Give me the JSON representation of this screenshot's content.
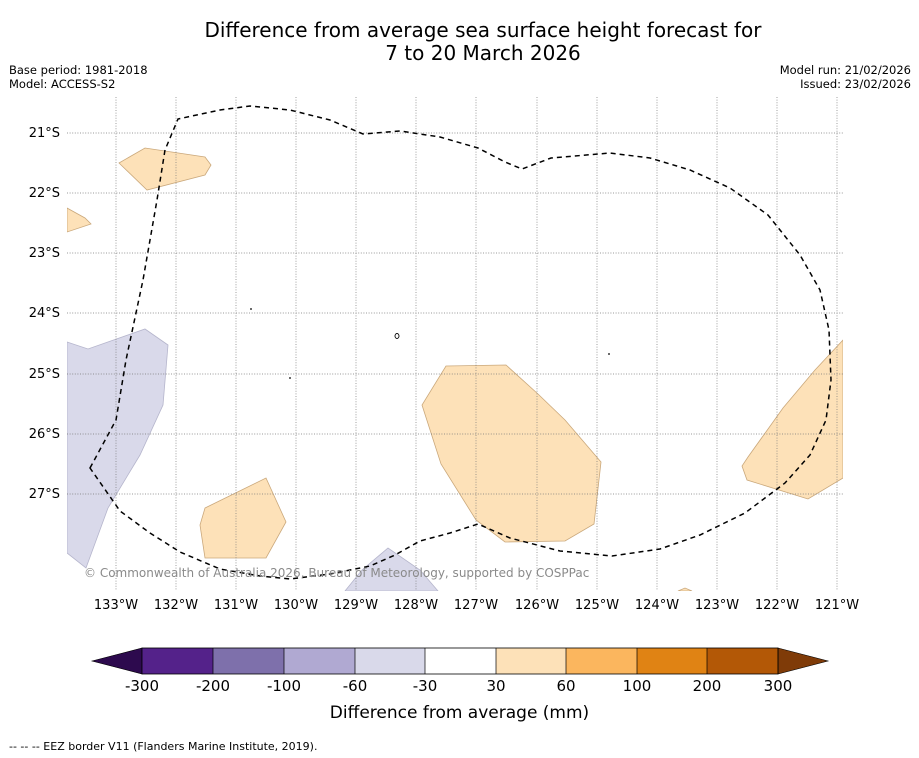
{
  "title": {
    "line1": "Difference from average sea surface height forecast for",
    "line2": "7 to 20 March 2026"
  },
  "meta": {
    "base_period": "Base period: 1981-2018",
    "model": "Model: ACCESS-S2",
    "model_run": "Model run: 21/02/2026",
    "issued": "Issued: 23/02/2026"
  },
  "map": {
    "latitude_labels": [
      "21°S",
      "22°S",
      "23°S",
      "24°S",
      "25°S",
      "26°S",
      "27°S"
    ],
    "longitude_labels": [
      "133°W",
      "132°W",
      "131°W",
      "130°W",
      "129°W",
      "128°W",
      "127°W",
      "126°W",
      "125°W",
      "124°W",
      "123°W",
      "122°W",
      "121°W"
    ],
    "copyright": "© Commonwealth of Australia 2026, Bureau of Meteorology, supported by COSPPac",
    "colors": {
      "positive_light": "#fde1b8",
      "negative_light": "#d9d9ea",
      "gridline": "#777777",
      "eez_border": "#000000"
    }
  },
  "colorbar": {
    "labels": [
      "-300",
      "-200",
      "-100",
      "-60",
      "-30",
      "30",
      "60",
      "100",
      "200",
      "300"
    ],
    "colors": [
      "#2d0a4e",
      "#54228a",
      "#7e70ab",
      "#b0a9d2",
      "#d9d9ea",
      "#ffffff",
      "#fde1b8",
      "#fbb65e",
      "#e08314",
      "#b35806",
      "#7f3b08"
    ],
    "title": "Difference from average (mm)"
  },
  "footnote": "--  --  -- EEZ border V11 (Flanders Marine Institute, 2019)."
}
